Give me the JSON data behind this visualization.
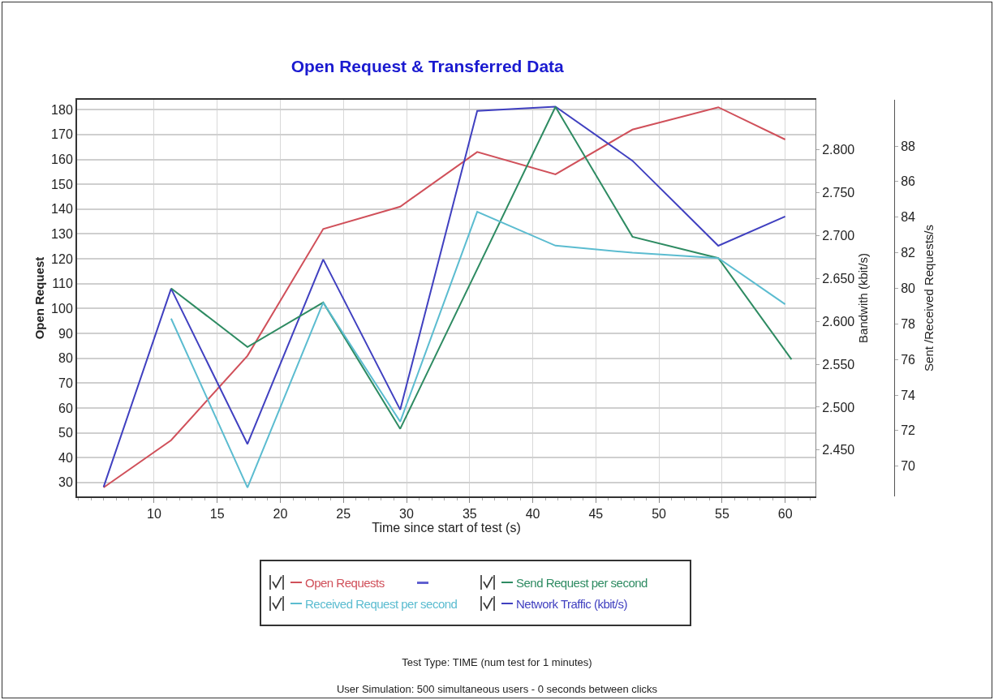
{
  "chart_data": {
    "type": "line",
    "title": "Open Request & Transferred Data",
    "xlabel": "Time since start of test (s)",
    "ylabel": "Open Request",
    "y2label": "Bandwith (kbit/s)",
    "y3label": "Sent /Received Requests/s",
    "x": [
      6.0,
      11.35,
      17.4,
      23.4,
      29.5,
      35.6,
      41.8,
      47.9,
      54.7,
      60
    ],
    "series": [
      {
        "name": "Open Requests",
        "color": "#d0505a",
        "values": [
          28,
          47,
          81,
          132,
          141,
          163,
          154,
          172,
          181,
          168
        ]
      },
      {
        "name": "Send Request per second",
        "color": "#2e8b62",
        "axis": "y3",
        "x": [
          11.35,
          17.4,
          23.4,
          29.5,
          41.8,
          47.9,
          54.7,
          60.5
        ],
        "values": [
          80.0,
          76.7,
          79.2,
          72.1,
          90.2,
          82.9,
          81.7,
          76.0
        ]
      },
      {
        "name": "Received Request per second",
        "color": "#5bbcd0",
        "axis": "y3",
        "values": [
          null,
          78.3,
          68.8,
          79.2,
          72.5,
          84.3,
          82.4,
          82.0,
          81.7,
          79.1
        ]
      },
      {
        "name": "Network Traffic (kbit/s)",
        "color": "#4040c0",
        "axis": "y2",
        "values": [
          2.407,
          2.638,
          2.457,
          2.672,
          2.497,
          2.845,
          2.85,
          2.787,
          2.688,
          2.722
        ]
      }
    ],
    "xlim": [
      3.9,
      62.4
    ],
    "xticks": [
      10,
      15,
      20,
      25,
      30,
      35,
      40,
      45,
      50,
      55,
      60
    ],
    "ylim": [
      24.4,
      184
    ],
    "yticks": [
      30,
      40,
      50,
      60,
      70,
      80,
      90,
      100,
      110,
      120,
      130,
      140,
      150,
      160,
      170,
      180
    ],
    "y2lim": [
      2.396,
      2.858
    ],
    "y2ticks": [
      {
        "value": 2.45,
        "label": "2.450"
      },
      {
        "value": 2.5,
        "label": "2.500"
      },
      {
        "value": 2.55,
        "label": "2.550"
      },
      {
        "value": 2.6,
        "label": "2.600"
      },
      {
        "value": 2.65,
        "label": "2.650"
      },
      {
        "value": 2.7,
        "label": "2.700"
      },
      {
        "value": 2.75,
        "label": "2.750"
      },
      {
        "value": 2.8,
        "label": "2.800"
      }
    ],
    "y3lim": [
      68.3,
      90.6
    ],
    "y3ticks": [
      70,
      72,
      74,
      76,
      78,
      80,
      82,
      84,
      86,
      88
    ],
    "grid": true,
    "legend": "bottom",
    "marker": "none",
    "line_style": "solid",
    "annotations": [
      "Test Type: TIME (num test for 1 minutes)",
      "User Simulation: 500 simultaneous users - 0 seconds between clicks"
    ]
  }
}
